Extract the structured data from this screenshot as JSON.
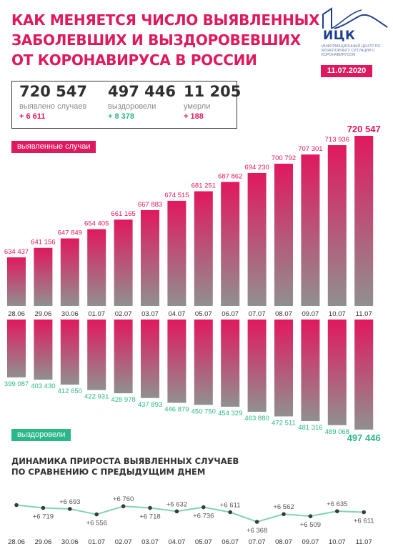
{
  "title_lines": [
    "КАК МЕНЯЕТСЯ ЧИСЛО ВЫЯВЛЕННЫХ",
    "ЗАБОЛЕВШИХ И ВЫЗДОРОВЕВШИХ",
    "ОТ КОРОНАВИРУСА В РОССИИ"
  ],
  "logo": {
    "abbr": "ИЦК",
    "subtitle": "ИНФОРМАЦИОННЫЙ ЦЕНТР ПО МОНИТОРИНГУ СИТУАЦИИ С КОРОНАВИРУСОМ",
    "icon": "house-graph-logo-icon"
  },
  "date": "11.07.2020",
  "stats": {
    "detected": {
      "value": "720 547",
      "label": "выявлено случаев",
      "delta": "+ 6 611"
    },
    "recovered": {
      "value": "497 446",
      "label": "выздоровели",
      "delta": "+ 8 378"
    },
    "died": {
      "value": "11 205",
      "label": "умерли",
      "delta": "+ 188"
    }
  },
  "colors": {
    "accent": "#e0195f",
    "green": "#2bb78a",
    "bar_gray": "#8e8e8e",
    "line": "#7fd2ba",
    "text": "#3a3a3a"
  },
  "caption_lines": [
    "ДИНАМИКА ПРИРОСТА ВЫЯВЛЕННЫХ СЛУЧАЕВ",
    "ПО СРАВНЕНИЮ С ПРЕДЫДУЩИМ ДНЕМ"
  ],
  "chart_data": [
    {
      "type": "bar",
      "label": "выявленные случаи",
      "categories": [
        "28.06",
        "29.06",
        "30.06",
        "01.07",
        "02.07",
        "03.07",
        "04.07",
        "05.07",
        "06.07",
        "07.07",
        "08.07",
        "09.07",
        "10.07",
        "11.07"
      ],
      "values": [
        634437,
        641156,
        647849,
        654405,
        661165,
        667883,
        674515,
        681251,
        687862,
        694230,
        700792,
        707301,
        713936,
        720547
      ],
      "value_labels": [
        "634 437",
        "641 156",
        "647 849",
        "654 405",
        "661 165",
        "667 883",
        "674 515",
        "681 251",
        "687 862",
        "694 230",
        "700 792",
        "707 301",
        "713 936",
        "720 547"
      ]
    },
    {
      "type": "bar",
      "label": "выздоровели",
      "categories": [
        "28.06",
        "29.06",
        "30.06",
        "01.07",
        "02.07",
        "03.07",
        "04.07",
        "05.07",
        "06.07",
        "07.07",
        "08.07",
        "09.07",
        "10.07",
        "11.07"
      ],
      "values": [
        399087,
        403430,
        412650,
        422931,
        428978,
        437893,
        446879,
        450750,
        454329,
        463880,
        472511,
        481316,
        489068,
        497446
      ],
      "value_labels": [
        "399 087",
        "403 430",
        "412 650",
        "422 931",
        "428 978",
        "437 893",
        "446 879",
        "450 750",
        "454 329",
        "463 880",
        "472 511",
        "481 316",
        "489 068",
        "497 446"
      ]
    },
    {
      "type": "line",
      "title": "ДИНАМИКА ПРИРОСТА ВЫЯВЛЕННЫХ СЛУЧАЕВ ПО СРАВНЕНИЮ С ПРЕДЫДУЩИМ ДНЕМ",
      "x": [
        "28.06",
        "29.06",
        "30.06",
        "01.07",
        "02.07",
        "03.07",
        "04.07",
        "05.07",
        "06.07",
        "07.07",
        "08.07",
        "09.07",
        "10.07",
        "11.07"
      ],
      "values": [
        6791,
        6719,
        6693,
        6556,
        6760,
        6718,
        6632,
        6736,
        6611,
        6368,
        6562,
        6509,
        6635,
        6611
      ],
      "value_labels": [
        "",
        "+6 719",
        "+6 693",
        "+6 556",
        "+6 760",
        "+6 718",
        "+6 632",
        "+6 736",
        "+6 611",
        "+6 368",
        "+6 562",
        "+6 509",
        "+6 635",
        "+6 611"
      ],
      "label_side": [
        "",
        "below",
        "above",
        "below",
        "above",
        "below",
        "above",
        "below",
        "above",
        "below",
        "above",
        "below",
        "above",
        "below"
      ]
    }
  ]
}
